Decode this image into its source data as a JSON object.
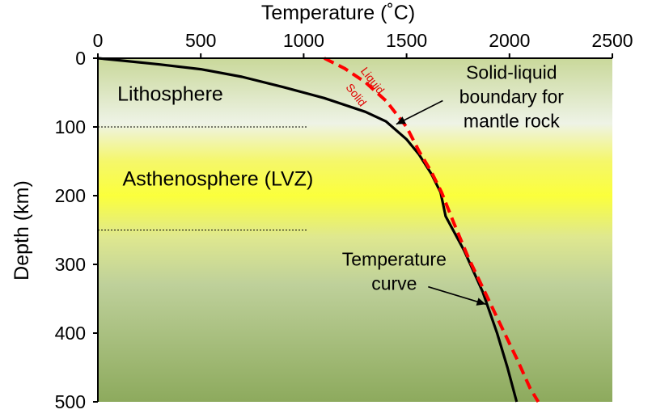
{
  "chart_data": {
    "type": "line",
    "xlabel": "Temperature (˚C)",
    "ylabel": "Depth (km)",
    "xlim": [
      0,
      2500
    ],
    "ylim": [
      500,
      0
    ],
    "x_ticks": [
      "0",
      "500",
      "1000",
      "1500",
      "2000",
      "2500"
    ],
    "y_ticks": [
      "0",
      "100",
      "200",
      "300",
      "400",
      "500"
    ],
    "x_axis_position": "top",
    "y_axis_inverted": true,
    "grid": false,
    "background": {
      "type": "vertical-gradient",
      "stops": [
        {
          "depth": 0,
          "color": "#c9d89a"
        },
        {
          "depth": 95,
          "color": "#eef3e6"
        },
        {
          "depth": 150,
          "color": "#f5f76a"
        },
        {
          "depth": 200,
          "color": "#fbff3c"
        },
        {
          "depth": 260,
          "color": "#dfe88f"
        },
        {
          "depth": 330,
          "color": "#bed09a"
        },
        {
          "depth": 500,
          "color": "#8daa5d"
        }
      ]
    },
    "series": [
      {
        "style": "solid",
        "color": "#000000",
        "points": [
          [
            0,
            0
          ],
          [
            100,
            3
          ],
          [
            300,
            9
          ],
          [
            500,
            16
          ],
          [
            700,
            27
          ],
          [
            900,
            42
          ],
          [
            1100,
            58
          ],
          [
            1300,
            78
          ],
          [
            1400,
            92
          ],
          [
            1500,
            118
          ],
          [
            1560,
            140
          ],
          [
            1620,
            168
          ],
          [
            1665,
            195
          ],
          [
            1690,
            230
          ],
          [
            1780,
            280
          ],
          [
            1870,
            340
          ],
          [
            1940,
            400
          ],
          [
            1990,
            450
          ],
          [
            2035,
            500
          ]
        ]
      },
      {
        "style": "dashed",
        "color": "#ff0000",
        "points": [
          [
            1100,
            0
          ],
          [
            1200,
            15
          ],
          [
            1300,
            35
          ],
          [
            1400,
            62
          ],
          [
            1500,
            100
          ],
          [
            1560,
            135
          ],
          [
            1620,
            165
          ],
          [
            1670,
            195
          ],
          [
            1730,
            240
          ],
          [
            1800,
            290
          ],
          [
            1880,
            340
          ],
          [
            1960,
            390
          ],
          [
            2040,
            440
          ],
          [
            2100,
            480
          ],
          [
            2140,
            500
          ]
        ]
      }
    ],
    "region_labels": [
      {
        "text": "Lithosphere",
        "x": 95,
        "y": 62
      },
      {
        "text": "Asthenosphere (LVZ)",
        "x": 120,
        "y": 185
      }
    ],
    "boundaries": [
      {
        "depth": 100,
        "x_from": 0,
        "x_to": 1020
      },
      {
        "depth": 250,
        "x_from": 0,
        "x_to": 1020
      }
    ],
    "annotations": [
      {
        "lines": [
          "Solid-liquid",
          "boundary for",
          "mantle rock"
        ],
        "x": 2010,
        "y": 30,
        "arrow_to": [
          1450,
          96
        ]
      },
      {
        "lines": [
          "Temperature",
          "curve"
        ],
        "x": 1440,
        "y": 302,
        "arrow_to": [
          1885,
          358
        ]
      }
    ],
    "curve_labels": [
      {
        "text": "Liquid",
        "x": 1320,
        "y": 36,
        "rotate": 52
      },
      {
        "text": "Solid",
        "x": 1240,
        "y": 57,
        "rotate": 52
      }
    ]
  }
}
